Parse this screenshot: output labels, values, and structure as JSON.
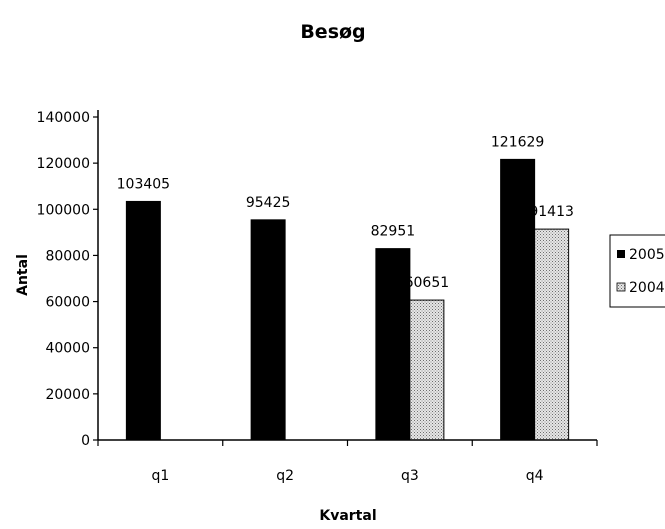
{
  "chart_data": {
    "type": "bar",
    "title": "Besøg",
    "xlabel": "Kvartal",
    "ylabel": "Antal",
    "categories": [
      "q1",
      "q2",
      "q3",
      "q4"
    ],
    "series": [
      {
        "name": "2005",
        "values": [
          103405,
          95425,
          82951,
          121629
        ],
        "color": "#000000",
        "pattern": "solid"
      },
      {
        "name": "2004",
        "values": [
          null,
          null,
          60651,
          91413
        ],
        "color": "#c8c8c8",
        "pattern": "dotted"
      }
    ],
    "ylim": [
      0,
      140000
    ],
    "yticks": [
      "0",
      "20000",
      "40000",
      "60000",
      "80000",
      "100000",
      "120000",
      "140000"
    ],
    "data_labels": [
      [
        "103405",
        "95425",
        "82951",
        "121629"
      ],
      [
        "",
        "",
        "60651",
        "91413"
      ]
    ],
    "grid": false,
    "legend_position": "right"
  }
}
